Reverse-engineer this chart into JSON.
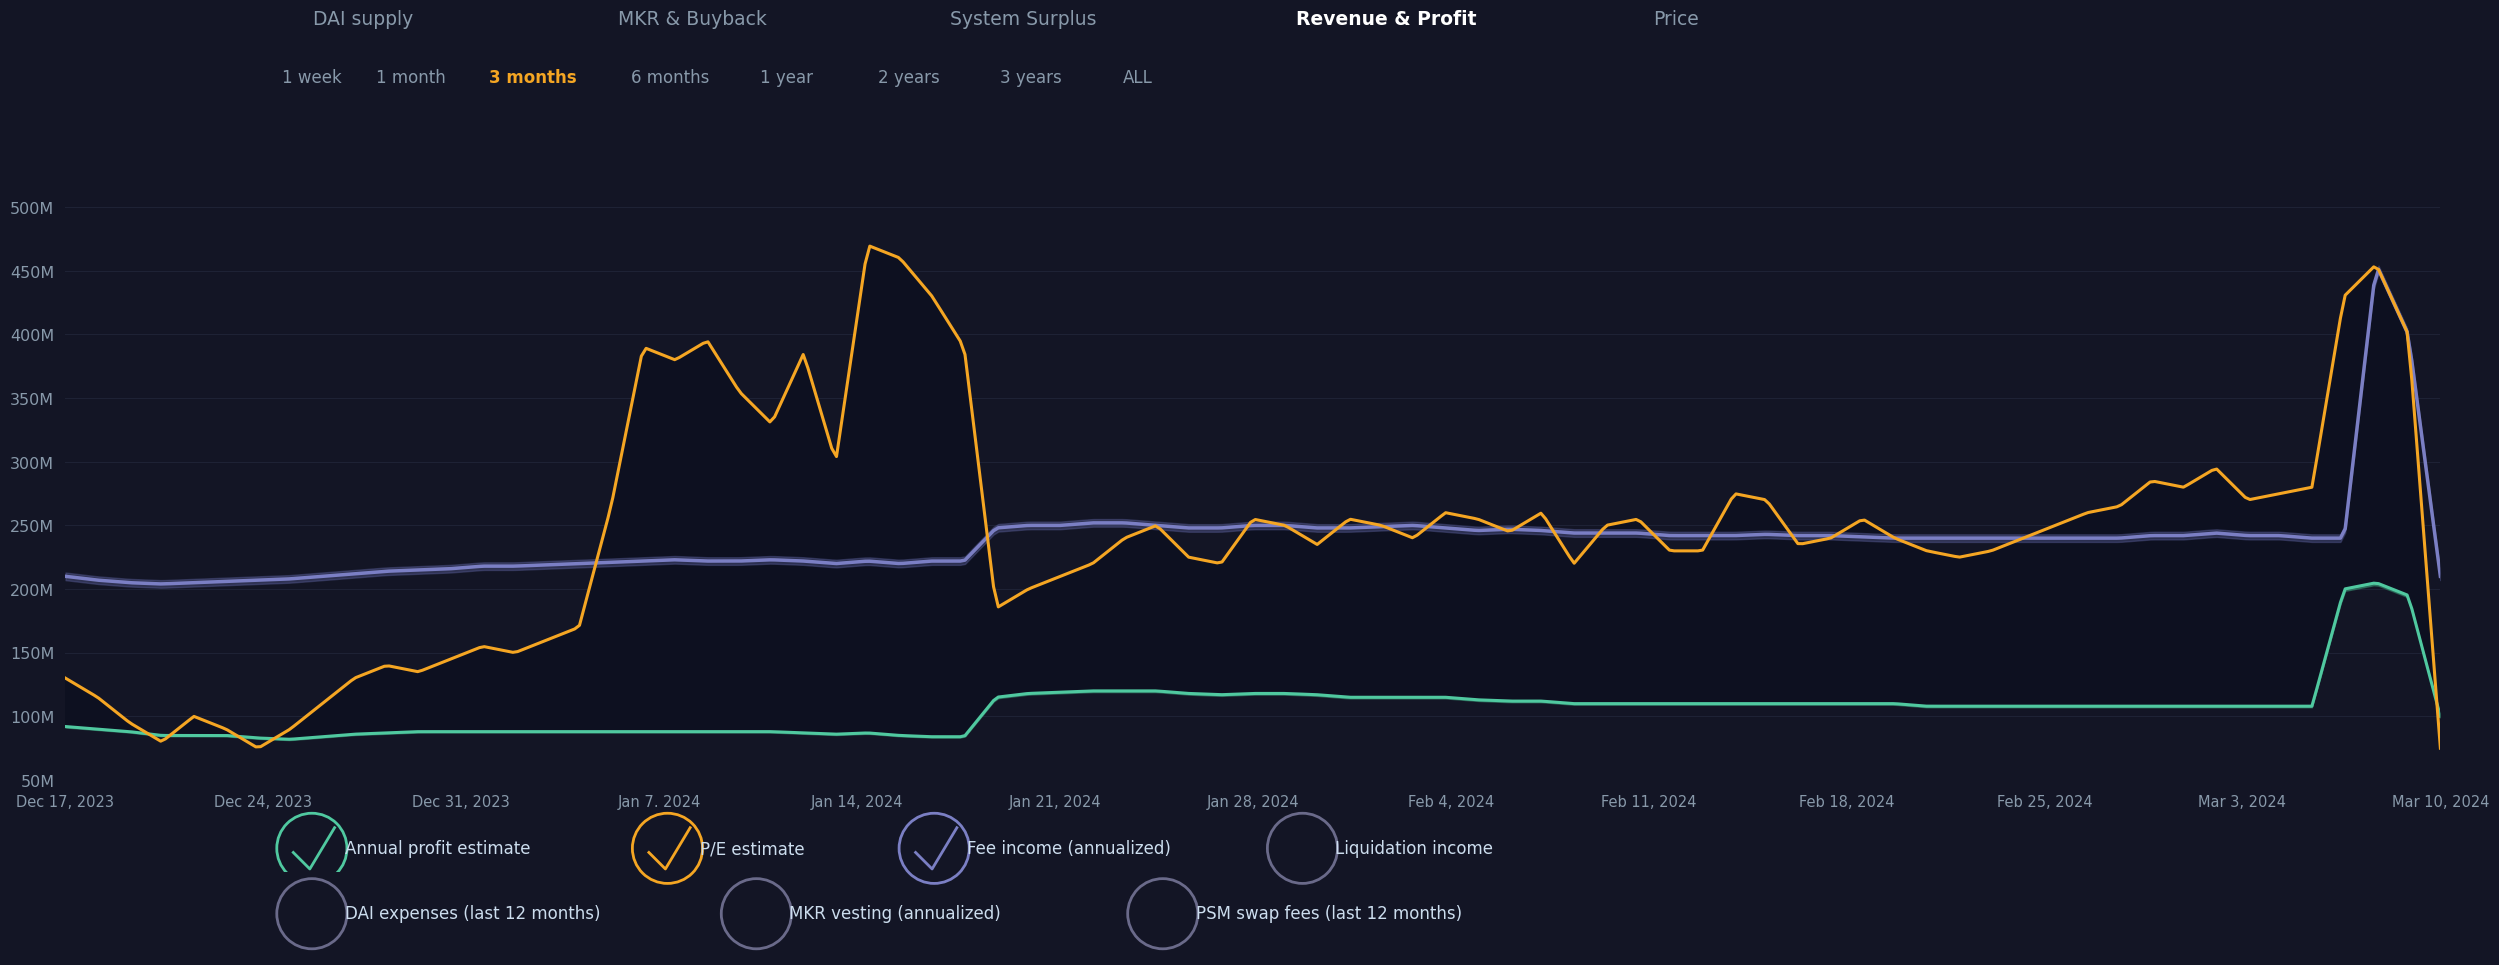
{
  "bg_color": "#131525",
  "nav_items": [
    "DAI supply",
    "MKR & Buyback",
    "System Surplus",
    "Revenue & Profit",
    "Price"
  ],
  "nav_active": "Revenue & Profit",
  "time_items": [
    "1 week",
    "1 month",
    "3 months",
    "6 months",
    "1 year",
    "2 years",
    "3 years",
    "ALL"
  ],
  "time_active": "3 months",
  "yticks": [
    50,
    100,
    150,
    200,
    250,
    300,
    350,
    400,
    450,
    500
  ],
  "x_labels": [
    "Dec 17, 2023",
    "Dec 24, 2023",
    "Dec 31, 2023",
    "Jan 7, 2024",
    "Jan 14, 2024",
    "Jan 21, 2024",
    "Jan 28, 2024",
    "Feb 4, 2024",
    "Feb 11, 2024",
    "Feb 18, 2024",
    "Feb 25, 2024",
    "Mar 3, 2024",
    "Mar 10, 2024"
  ],
  "orange_line": [
    130,
    115,
    95,
    80,
    100,
    90,
    75,
    90,
    110,
    130,
    140,
    135,
    145,
    155,
    150,
    160,
    170,
    265,
    390,
    380,
    395,
    355,
    330,
    385,
    300,
    470,
    460,
    430,
    390,
    185,
    200,
    210,
    220,
    240,
    250,
    225,
    220,
    255,
    250,
    235,
    255,
    250,
    240,
    260,
    255,
    245,
    260,
    220,
    250,
    255,
    230,
    230,
    275,
    270,
    235,
    240,
    255,
    240,
    230,
    225,
    230,
    240,
    250,
    260,
    265,
    285,
    280,
    295,
    270,
    275,
    280,
    430,
    455,
    400,
    75
  ],
  "purple_line": [
    210,
    207,
    205,
    204,
    205,
    206,
    207,
    208,
    210,
    212,
    214,
    215,
    216,
    218,
    218,
    219,
    220,
    221,
    222,
    223,
    222,
    222,
    223,
    222,
    220,
    222,
    220,
    222,
    222,
    248,
    250,
    250,
    252,
    252,
    250,
    248,
    248,
    250,
    250,
    248,
    248,
    249,
    250,
    248,
    246,
    247,
    246,
    244,
    244,
    244,
    242,
    242,
    242,
    243,
    242,
    242,
    241,
    240,
    240,
    240,
    240,
    240,
    240,
    240,
    240,
    242,
    242,
    244,
    242,
    242,
    240,
    240,
    455,
    400,
    210
  ],
  "teal_line": [
    92,
    90,
    88,
    85,
    85,
    85,
    83,
    82,
    84,
    86,
    87,
    88,
    88,
    88,
    88,
    88,
    88,
    88,
    88,
    88,
    88,
    88,
    88,
    87,
    86,
    87,
    85,
    84,
    84,
    115,
    118,
    119,
    120,
    120,
    120,
    118,
    117,
    118,
    118,
    117,
    115,
    115,
    115,
    115,
    113,
    112,
    112,
    110,
    110,
    110,
    110,
    110,
    110,
    110,
    110,
    110,
    110,
    110,
    108,
    108,
    108,
    108,
    108,
    108,
    108,
    108,
    108,
    108,
    108,
    108,
    108,
    200,
    205,
    195,
    100
  ],
  "line_colors": {
    "orange": "#f5a623",
    "purple": "#7b7fc4",
    "teal": "#50c9a0"
  },
  "fill_color": "#0d1020",
  "purple_fill_color": "#5a5f9a",
  "teal_fill_color": "#3a9a78",
  "text_color": "#8899aa",
  "grid_color": "#1e2235",
  "nav_color": "#8899aa",
  "nav_active_color": "#ffffff",
  "time_color": "#8899aa",
  "time_active_color": "#f5a623",
  "legend_text_color": "#ccddee"
}
